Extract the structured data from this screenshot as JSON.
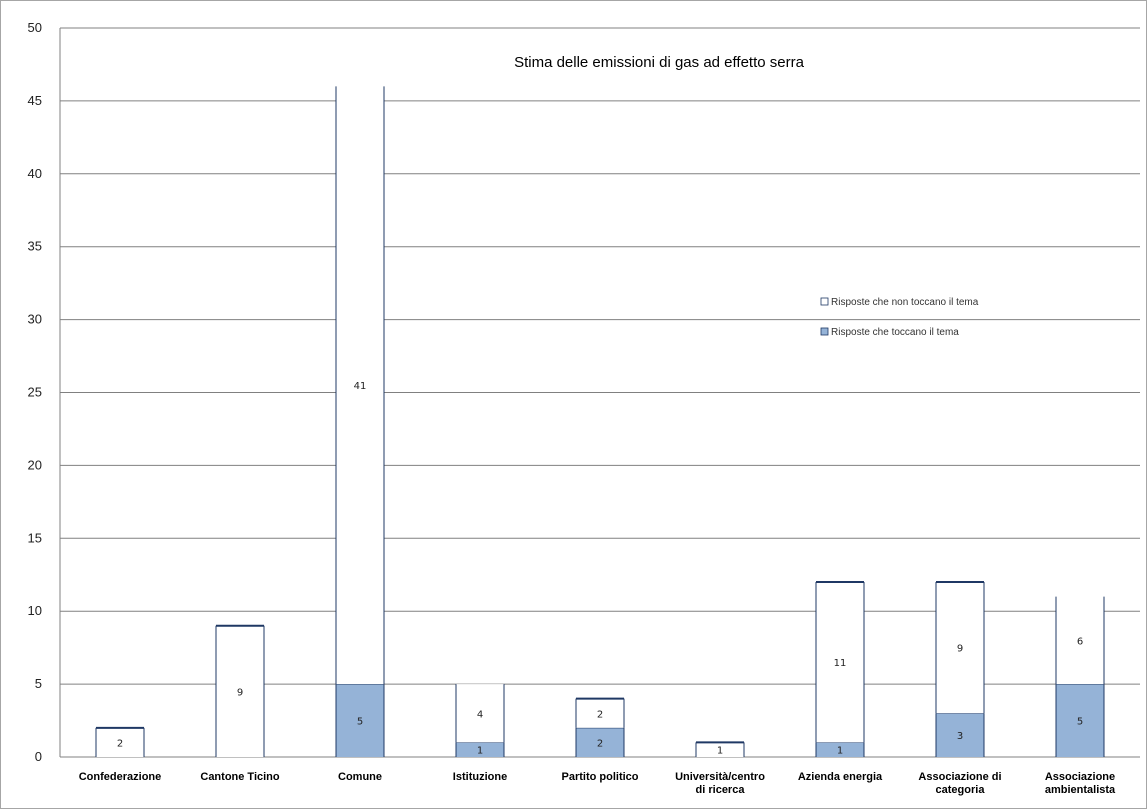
{
  "chart_data": {
    "type": "bar",
    "stacked": true,
    "title": "Stima delle emissioni di gas ad effetto serra",
    "categories": [
      [
        "Confederazione"
      ],
      [
        "Cantone Ticino"
      ],
      [
        "Comune"
      ],
      [
        "Istituzione"
      ],
      [
        "Partito politico"
      ],
      [
        "Università/centro",
        "di ricerca"
      ],
      [
        "Azienda energia"
      ],
      [
        "Associazione di",
        "categoria"
      ],
      [
        "Associazione",
        "ambientalista"
      ]
    ],
    "series": [
      {
        "name": "Risposte che toccano il tema",
        "values": [
          0,
          0,
          5,
          1,
          2,
          0,
          1,
          3,
          5
        ],
        "color": "#95b3d7"
      },
      {
        "name": "Risposte che non toccano il tema",
        "values": [
          2,
          9,
          41,
          4,
          2,
          1,
          11,
          9,
          6
        ],
        "color": "#ffffff"
      }
    ],
    "ylim": [
      0,
      50
    ],
    "yticks": [
      0,
      5,
      10,
      15,
      20,
      25,
      30,
      35,
      40,
      45,
      50
    ],
    "grid": true,
    "legend": "right"
  },
  "colors": {
    "outline": "#1f3864",
    "grid": "#808080",
    "frame": "#a6a6a6"
  }
}
